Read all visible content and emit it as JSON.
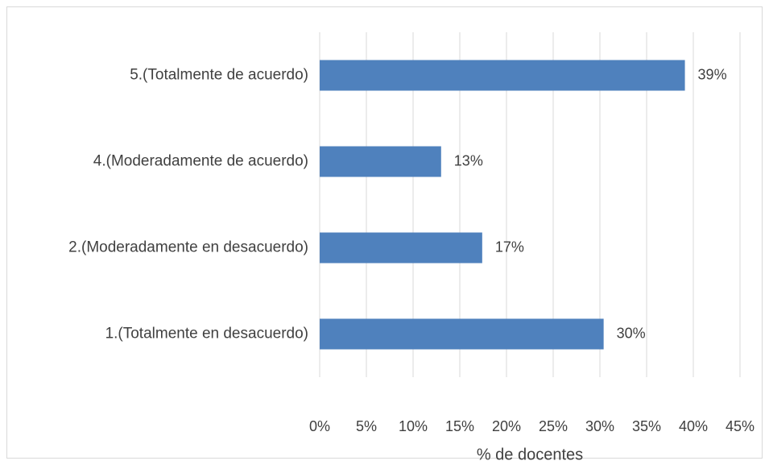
{
  "chart_data": {
    "type": "hbar",
    "categories": [
      "5.(Totalmente de acuerdo)",
      "4.(Moderadamente de acuerdo)",
      "2.(Moderadamente en desacuerdo)",
      "1.(Totalmente en desacuerdo)"
    ],
    "values": [
      39.1,
      13.0,
      17.4,
      30.4
    ],
    "value_labels": [
      "39%",
      "13%",
      "17%",
      "30%"
    ],
    "color": "#4f81bd",
    "xlabel": "% de docentes",
    "xlim": [
      0,
      45
    ],
    "xticks": [
      {
        "value": 0,
        "label": "0%"
      },
      {
        "value": 5,
        "label": "5%"
      },
      {
        "value": 10,
        "label": "10%"
      },
      {
        "value": 15,
        "label": "15%"
      },
      {
        "value": 20,
        "label": "20%"
      },
      {
        "value": 25,
        "label": "25%"
      },
      {
        "value": 30,
        "label": "30%"
      },
      {
        "value": 35,
        "label": "35%"
      },
      {
        "value": 40,
        "label": "40%"
      },
      {
        "value": 45,
        "label": "45%"
      }
    ],
    "grid": true
  }
}
